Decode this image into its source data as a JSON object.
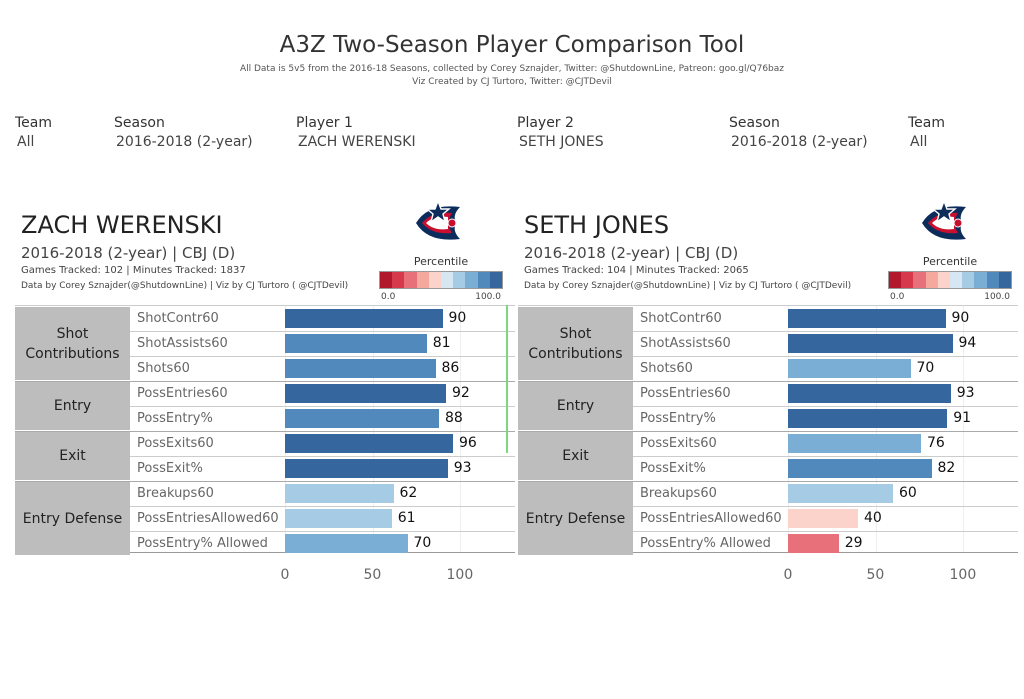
{
  "header": {
    "title": "A3Z Two-Season Player Comparison Tool",
    "subtitle1": "All Data is 5v5 from the 2016-18 Seasons, collected by Corey Sznajder, Twitter: @ShutdownLine, Patreon: goo.gl/Q76baz",
    "subtitle2": "Viz Created by CJ Turtoro, Twitter: @CJTDevil"
  },
  "filters": {
    "team1": {
      "label": "Team",
      "value": "All"
    },
    "season1": {
      "label": "Season",
      "value": "2016-2018 (2-year)"
    },
    "player1": {
      "label": "Player 1",
      "value": "ZACH WERENSKI"
    },
    "player2": {
      "label": "Player 2",
      "value": "SETH JONES"
    },
    "season2": {
      "label": "Season",
      "value": "2016-2018 (2-year)"
    },
    "team2": {
      "label": "Team",
      "value": "All"
    }
  },
  "legend": {
    "title": "Percentile",
    "min_label": "0.0",
    "max_label": "100.0",
    "colors": [
      "#b2182b",
      "#d6394b",
      "#e8707a",
      "#f4a99c",
      "#fbd3cb",
      "#d6e6f2",
      "#a6cbe4",
      "#7aaed5",
      "#5289bd",
      "#35669d"
    ]
  },
  "categories": [
    {
      "name": "Shot Contributions",
      "metrics": [
        "ShotContr60",
        "ShotAssists60",
        "Shots60"
      ]
    },
    {
      "name": "Entry",
      "metrics": [
        "PossEntries60",
        "PossEntry%"
      ]
    },
    {
      "name": "Exit",
      "metrics": [
        "PossExits60",
        "PossExit%"
      ]
    },
    {
      "name": "Entry Defense",
      "metrics": [
        "Breakups60",
        "PossEntriesAllowed60",
        "PossEntry% Allowed"
      ]
    }
  ],
  "axis": {
    "ticks": [
      "0",
      "50",
      "100"
    ]
  },
  "players": [
    {
      "name": "ZACH WERENSKI",
      "info": "2016-2018 (2-year) | CBJ (D)",
      "games": "Games Tracked: 102  | Minutes Tracked: 1837",
      "credit": "Data by Corey Sznajder(@ShutdownLine) | Viz by CJ Turtoro ( @CJTDevil)",
      "logo": "columbus-blue-jackets-logo"
    },
    {
      "name": "SETH JONES",
      "info": "2016-2018 (2-year) | CBJ (D)",
      "games": "Games Tracked: 104  | Minutes Tracked: 2065",
      "credit": "Data by Corey Sznajder(@ShutdownLine) | Viz by CJ Turtoro ( @CJTDevil)",
      "logo": "columbus-blue-jackets-logo"
    }
  ],
  "chart_data": [
    {
      "type": "bar",
      "player": "ZACH WERENSKI",
      "categories": [
        "ShotContr60",
        "ShotAssists60",
        "Shots60",
        "PossEntries60",
        "PossEntry%",
        "PossExits60",
        "PossExit%",
        "Breakups60",
        "PossEntriesAllowed60",
        "PossEntry% Allowed"
      ],
      "values": [
        90,
        81,
        86,
        92,
        88,
        96,
        93,
        62,
        61,
        70
      ],
      "xlim": [
        0,
        100
      ],
      "xlabel": "",
      "ylabel": ""
    },
    {
      "type": "bar",
      "player": "SETH JONES",
      "categories": [
        "ShotContr60",
        "ShotAssists60",
        "Shots60",
        "PossEntries60",
        "PossEntry%",
        "PossExits60",
        "PossExit%",
        "Breakups60",
        "PossEntriesAllowed60",
        "PossEntry% Allowed"
      ],
      "values": [
        90,
        94,
        70,
        93,
        91,
        76,
        82,
        60,
        40,
        29
      ],
      "xlim": [
        0,
        100
      ],
      "xlabel": "",
      "ylabel": ""
    }
  ]
}
